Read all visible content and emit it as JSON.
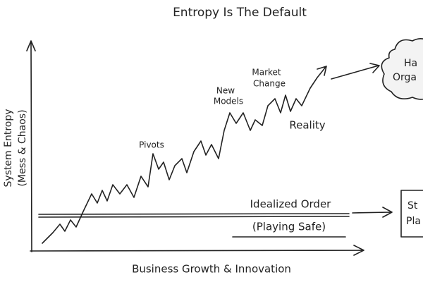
{
  "title": "Entropy Is The Default",
  "y_axis_label": [
    "System Entropy",
    "(Mess & Chaos)"
  ],
  "x_axis_label": "Business Growth & Innovation",
  "annotations": {
    "pivots": "Pivots",
    "new_models": [
      "New",
      "Models"
    ],
    "market_change": [
      "Market",
      "Change"
    ],
    "reality": "Reality"
  },
  "idealized": {
    "title": "Idealized Order",
    "subtitle": "(Playing Safe)"
  },
  "cloud": [
    "Ha",
    "Orga"
  ],
  "box": [
    "St",
    "Pla"
  ]
}
